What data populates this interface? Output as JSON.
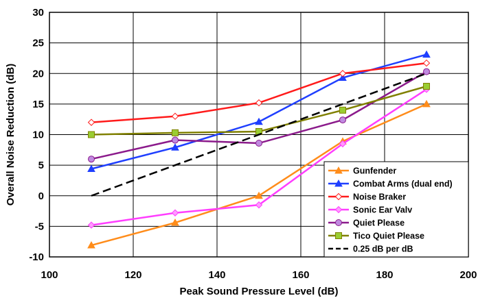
{
  "chart_data": {
    "type": "line",
    "title": "",
    "xlabel": "Peak Sound Pressure Level (dB)",
    "ylabel": "Overall Noise Reduction (dB)",
    "xlim": [
      100,
      200
    ],
    "ylim": [
      -10,
      30
    ],
    "xticks": [
      100,
      120,
      140,
      160,
      180,
      200
    ],
    "yticks": [
      -10,
      -5,
      0,
      5,
      10,
      15,
      20,
      25,
      30
    ],
    "grid": true,
    "legend_position": "bottom-right",
    "series": [
      {
        "name": "Gunfender",
        "color": "#FF8C1A",
        "marker": "triangle",
        "marker_fill": "#FF8C1A",
        "dash": false,
        "x": [
          110,
          130,
          150,
          170,
          190
        ],
        "y": [
          -8.1,
          -4.4,
          0,
          8.9,
          15.0
        ]
      },
      {
        "name": "Combat Arms (dual end)",
        "color": "#1F3FFF",
        "marker": "triangle",
        "marker_fill": "#1F3FFF",
        "dash": false,
        "x": [
          110,
          130,
          150,
          170,
          190
        ],
        "y": [
          4.4,
          7.9,
          12.1,
          19.3,
          23.1
        ]
      },
      {
        "name": "Noise Braker",
        "color": "#FF1A1A",
        "marker": "diamond",
        "marker_fill": "#FFFFFF",
        "dash": false,
        "x": [
          110,
          130,
          150,
          170,
          190
        ],
        "y": [
          12.0,
          13.0,
          15.2,
          20.0,
          21.7
        ]
      },
      {
        "name": "Sonic Ear Valv",
        "color": "#FF3DFF",
        "marker": "diamond",
        "marker_fill": "#FF9CFF",
        "dash": false,
        "x": [
          110,
          130,
          150,
          170,
          190
        ],
        "y": [
          -4.8,
          -2.8,
          -1.5,
          8.5,
          17.4
        ]
      },
      {
        "name": "Quiet Please",
        "color": "#8B1A8B",
        "marker": "circle",
        "marker_fill": "#C08AE0",
        "dash": false,
        "x": [
          110,
          130,
          150,
          170,
          190
        ],
        "y": [
          6.0,
          9.1,
          8.6,
          12.4,
          20.3
        ]
      },
      {
        "name": "Tico Quiet Please",
        "color": "#808000",
        "marker": "square",
        "marker_fill": "#9ACD32",
        "dash": false,
        "x": [
          110,
          130,
          150,
          170,
          190
        ],
        "y": [
          10.0,
          10.3,
          10.5,
          14.0,
          17.9
        ]
      },
      {
        "name": "0.25 dB per dB",
        "color": "#000000",
        "marker": "none",
        "marker_fill": "",
        "dash": true,
        "x": [
          110,
          190
        ],
        "y": [
          0,
          20
        ]
      }
    ]
  }
}
